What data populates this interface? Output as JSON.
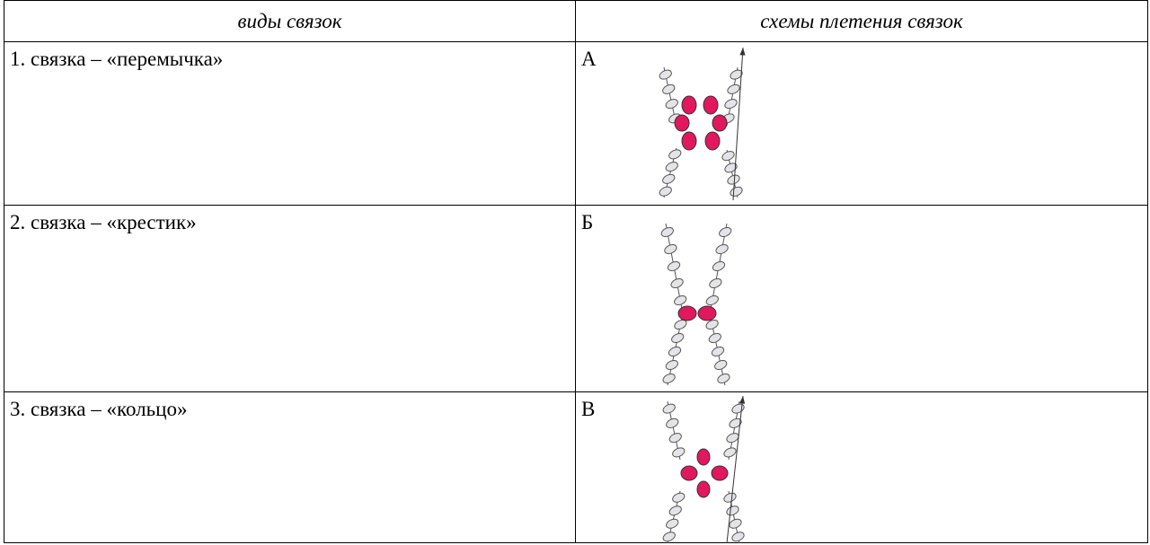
{
  "table": {
    "headers": [
      "виды связок",
      "схемы плетения связок"
    ],
    "rows": [
      [
        "1. связка – «перемычка»",
        "А"
      ],
      [
        "2. связка – «крестик»",
        "Б"
      ],
      [
        "3. связка – «кольцо»",
        "В"
      ]
    ]
  }
}
